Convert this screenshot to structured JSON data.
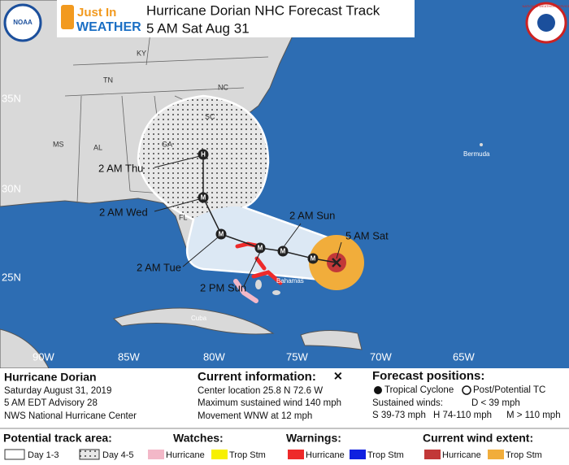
{
  "header": {
    "logo_top": "Just In",
    "logo_bottom": "WEATHER",
    "title": "Hurricane Dorian NHC Forecast Track",
    "subtitle": "5 AM Sat Aug 31",
    "noaa": "NOAA",
    "nws": "NATIONAL WEATHER SERVICE"
  },
  "map": {
    "lat_labels": [
      "35N",
      "30N",
      "25N"
    ],
    "lon_labels": [
      "90W",
      "85W",
      "80W",
      "75W",
      "70W",
      "65W"
    ],
    "places": [
      "KY",
      "TN",
      "MS",
      "AL",
      "GA",
      "SC",
      "NC",
      "FL",
      "Bermuda",
      "Cuba",
      "Bahamas"
    ],
    "forecast_labels": [
      "5 AM Sat",
      "2 AM Sun",
      "2 PM Sun",
      "2 AM Tue",
      "2 AM Wed",
      "2 AM Thu"
    ],
    "markers": [
      "M",
      "M",
      "M",
      "M",
      "M",
      "H"
    ]
  },
  "info": {
    "storm": {
      "name": "Hurricane Dorian",
      "date": "Saturday August 31, 2019",
      "advisory": "5 AM EDT Advisory 28",
      "center": "NWS National Hurricane Center"
    },
    "current": {
      "title": "Current information:",
      "symbol": "✕",
      "lines": [
        "Center location 25.8 N 72.6 W",
        "Maximum sustained wind 140 mph",
        "Movement WNW at 12 mph"
      ]
    },
    "forecast": {
      "title": "Forecast positions:",
      "tropical": "Tropical Cyclone",
      "post": "Post/Potential TC",
      "winds": "Sustained winds:",
      "d": "D < 39 mph",
      "s": "S 39-73 mph",
      "h": "H 74-110 mph",
      "m": "M > 110 mph"
    }
  },
  "legend": {
    "track": {
      "title": "Potential track area:",
      "day13": "Day 1-3",
      "day45": "Day 4-5"
    },
    "watches": {
      "title": "Watches:",
      "hurricane": "Hurricane",
      "trop": "Trop Stm"
    },
    "warnings": {
      "title": "Warnings:",
      "hurricane": "Hurricane",
      "trop": "Trop Stm"
    },
    "wind": {
      "title": "Current wind extent:",
      "hurricane": "Hurricane",
      "trop": "Trop Stm"
    }
  }
}
